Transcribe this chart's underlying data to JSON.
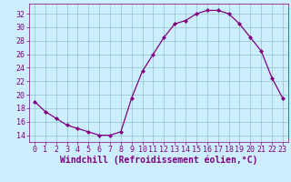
{
  "x": [
    0,
    1,
    2,
    3,
    4,
    5,
    6,
    7,
    8,
    9,
    10,
    11,
    12,
    13,
    14,
    15,
    16,
    17,
    18,
    19,
    20,
    21,
    22,
    23
  ],
  "y": [
    19,
    17.5,
    16.5,
    15.5,
    15,
    14.5,
    14,
    14,
    14.5,
    19.5,
    23.5,
    26,
    28.5,
    30.5,
    31,
    32,
    32.5,
    32.5,
    32,
    30.5,
    28.5,
    26.5,
    22.5,
    19.5
  ],
  "line_color": "#800080",
  "marker": "D",
  "marker_size": 2,
  "bg_color": "#cceeff",
  "grid_color": "#99cccc",
  "xlabel": "Windchill (Refroidissement éolien,°C)",
  "xlim": [
    -0.5,
    23.5
  ],
  "ylim": [
    13,
    33.5
  ],
  "yticks": [
    14,
    16,
    18,
    20,
    22,
    24,
    26,
    28,
    30,
    32
  ],
  "xticks": [
    0,
    1,
    2,
    3,
    4,
    5,
    6,
    7,
    8,
    9,
    10,
    11,
    12,
    13,
    14,
    15,
    16,
    17,
    18,
    19,
    20,
    21,
    22,
    23
  ],
  "tick_fontsize": 6,
  "label_fontsize": 7
}
